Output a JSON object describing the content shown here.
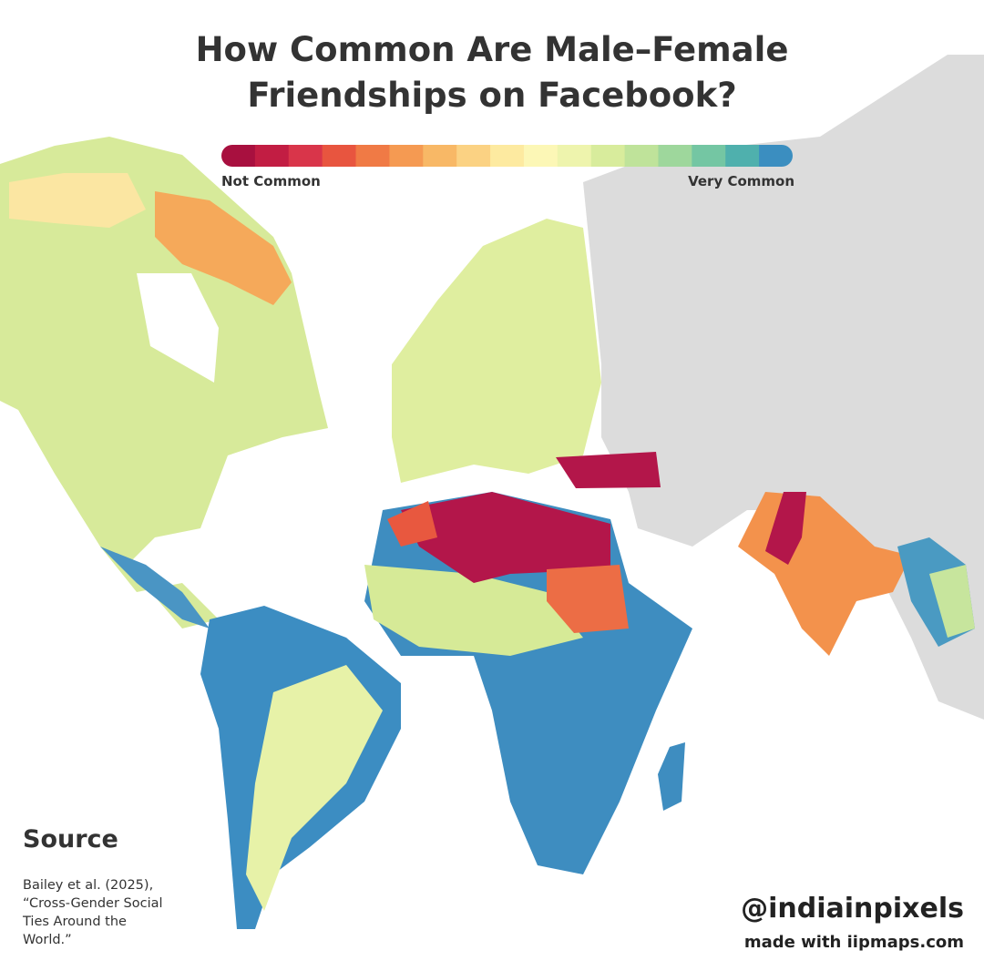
{
  "title": "How Common Are Male–Female Friendships on Facebook?",
  "legend": {
    "low_label": "Not Common",
    "high_label": "Very Common",
    "colors": [
      "#a8103f",
      "#c21d43",
      "#d9354a",
      "#e8553f",
      "#f07a45",
      "#f59a52",
      "#f8b866",
      "#fbd283",
      "#fdeaa0",
      "#fcf7b6",
      "#eef4ad",
      "#d8ec9c",
      "#bfe39a",
      "#9ed79c",
      "#74c6a3",
      "#4fb0ad",
      "#3b8ec0"
    ]
  },
  "source": {
    "heading": "Source",
    "text": "Bailey et al. (2025), “Cross-Gender Social Ties Around the World.”"
  },
  "credit": {
    "handle": "@indiainpixels",
    "note": "made with iipmaps.com"
  }
}
